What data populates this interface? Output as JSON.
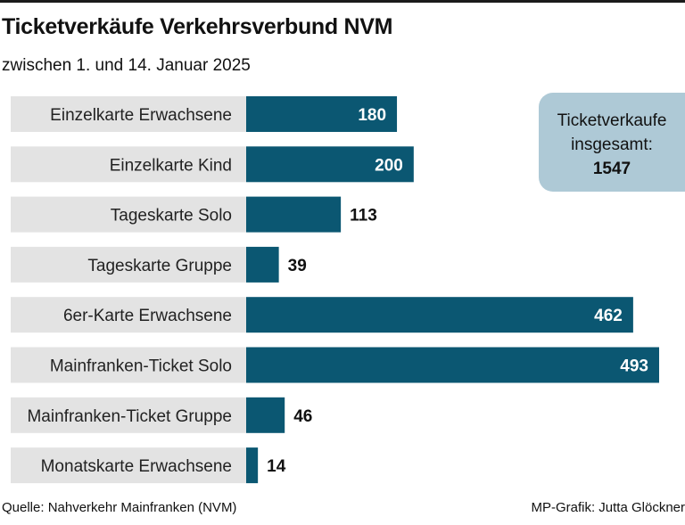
{
  "title": "Ticketverkäufe Verkehrsverbund NVM",
  "subtitle": "zwischen 1. und 14. Januar 2025",
  "total_box": {
    "line1": "Ticketverkaufe",
    "line2": "insgesamt:",
    "value": "1547"
  },
  "source": "Quelle: Nahverkehr Mainfranken (NVM)",
  "credit": "MP-Grafik: Jutta Glöckner",
  "colors": {
    "bar": "#0b5772",
    "label_bg": "#e3e3e3",
    "total_bg": "#aec9d6",
    "value_outside": "#111111",
    "value_inside": "#ffffff"
  },
  "chart_data": {
    "type": "bar",
    "orientation": "horizontal",
    "categories": [
      "Einzelkarte Erwachsene",
      "Einzelkarte Kind",
      "Tageskarte Solo",
      "Tageskarte Gruppe",
      "6er-Karte Erwachsene",
      "Mainfranken-Ticket Solo",
      "Mainfranken-Ticket Gruppe",
      "Monatskarte Erwachsene"
    ],
    "values": [
      180,
      200,
      113,
      39,
      462,
      493,
      46,
      14
    ],
    "value_labels": [
      "180",
      "200",
      "113",
      "39",
      "462",
      "493",
      "46",
      "14"
    ],
    "xlim": [
      0,
      493
    ],
    "grid": false,
    "legend": "none"
  }
}
